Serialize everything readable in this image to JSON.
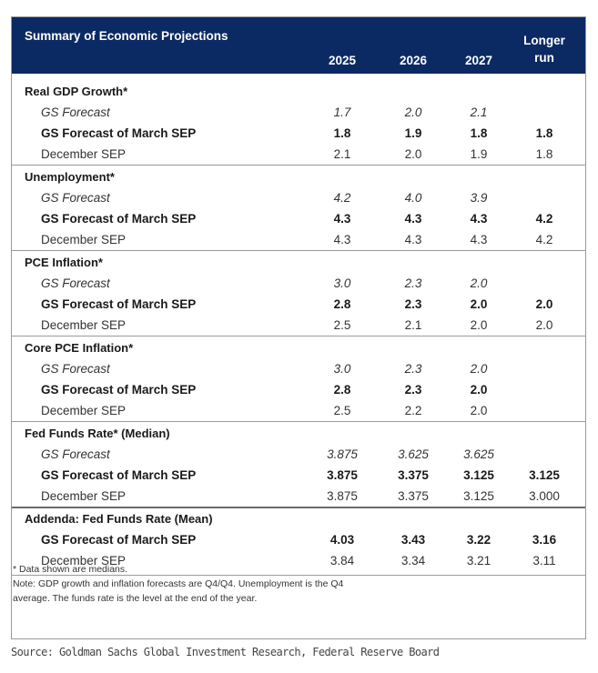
{
  "header": {
    "title": "Summary of Economic Projections",
    "columns": [
      "2025",
      "2026",
      "2027"
    ],
    "longer_run_line1": "Longer",
    "longer_run_line2": "run"
  },
  "sections": [
    {
      "title": "Real GDP Growth*",
      "rows": [
        {
          "label": "GS Forecast",
          "values": [
            "1.7",
            "2.0",
            "2.1",
            ""
          ]
        },
        {
          "label": "GS Forecast of March SEP",
          "values": [
            "1.8",
            "1.9",
            "1.8",
            "1.8"
          ]
        },
        {
          "label": "December SEP",
          "values": [
            "2.1",
            "2.0",
            "1.9",
            "1.8"
          ]
        }
      ]
    },
    {
      "title": "Unemployment*",
      "rows": [
        {
          "label": "GS Forecast",
          "values": [
            "4.2",
            "4.0",
            "3.9",
            ""
          ]
        },
        {
          "label": "GS Forecast of March SEP",
          "values": [
            "4.3",
            "4.3",
            "4.3",
            "4.2"
          ]
        },
        {
          "label": "December SEP",
          "values": [
            "4.3",
            "4.3",
            "4.3",
            "4.2"
          ]
        }
      ]
    },
    {
      "title": "PCE Inflation*",
      "rows": [
        {
          "label": "GS Forecast",
          "values": [
            "3.0",
            "2.3",
            "2.0",
            ""
          ]
        },
        {
          "label": "GS Forecast of March SEP",
          "values": [
            "2.8",
            "2.3",
            "2.0",
            "2.0"
          ]
        },
        {
          "label": "December SEP",
          "values": [
            "2.5",
            "2.1",
            "2.0",
            "2.0"
          ]
        }
      ]
    },
    {
      "title": "Core PCE Inflation*",
      "rows": [
        {
          "label": "GS Forecast",
          "values": [
            "3.0",
            "2.3",
            "2.0",
            ""
          ]
        },
        {
          "label": "GS Forecast of March SEP",
          "values": [
            "2.8",
            "2.3",
            "2.0",
            ""
          ]
        },
        {
          "label": "December SEP",
          "values": [
            "2.5",
            "2.2",
            "2.0",
            ""
          ]
        }
      ]
    },
    {
      "title": "Fed Funds Rate* (Median)",
      "rows": [
        {
          "label": "GS Forecast",
          "values": [
            "3.875",
            "3.625",
            "3.625",
            ""
          ]
        },
        {
          "label": "GS Forecast of March SEP",
          "values": [
            "3.875",
            "3.375",
            "3.125",
            "3.125"
          ]
        },
        {
          "label": "December SEP",
          "values": [
            "3.875",
            "3.375",
            "3.125",
            "3.000"
          ]
        }
      ]
    },
    {
      "title": "Addenda: Fed Funds Rate (Mean)",
      "rows": [
        {
          "label": "GS Forecast of March SEP",
          "values": [
            "4.03",
            "3.43",
            "3.22",
            "3.16"
          ]
        },
        {
          "label": "December SEP",
          "values": [
            "3.84",
            "3.34",
            "3.21",
            "3.11"
          ]
        }
      ]
    }
  ],
  "notes": {
    "line1": "* Data shown are medians.",
    "line2": "Note: GDP growth and inflation forecasts are Q4/Q4. Unemployment is the Q4",
    "line3": "average. The funds rate is the level at the end of the year."
  },
  "source": "Source: Goldman Sachs Global Investment Research, Federal Reserve Board"
}
